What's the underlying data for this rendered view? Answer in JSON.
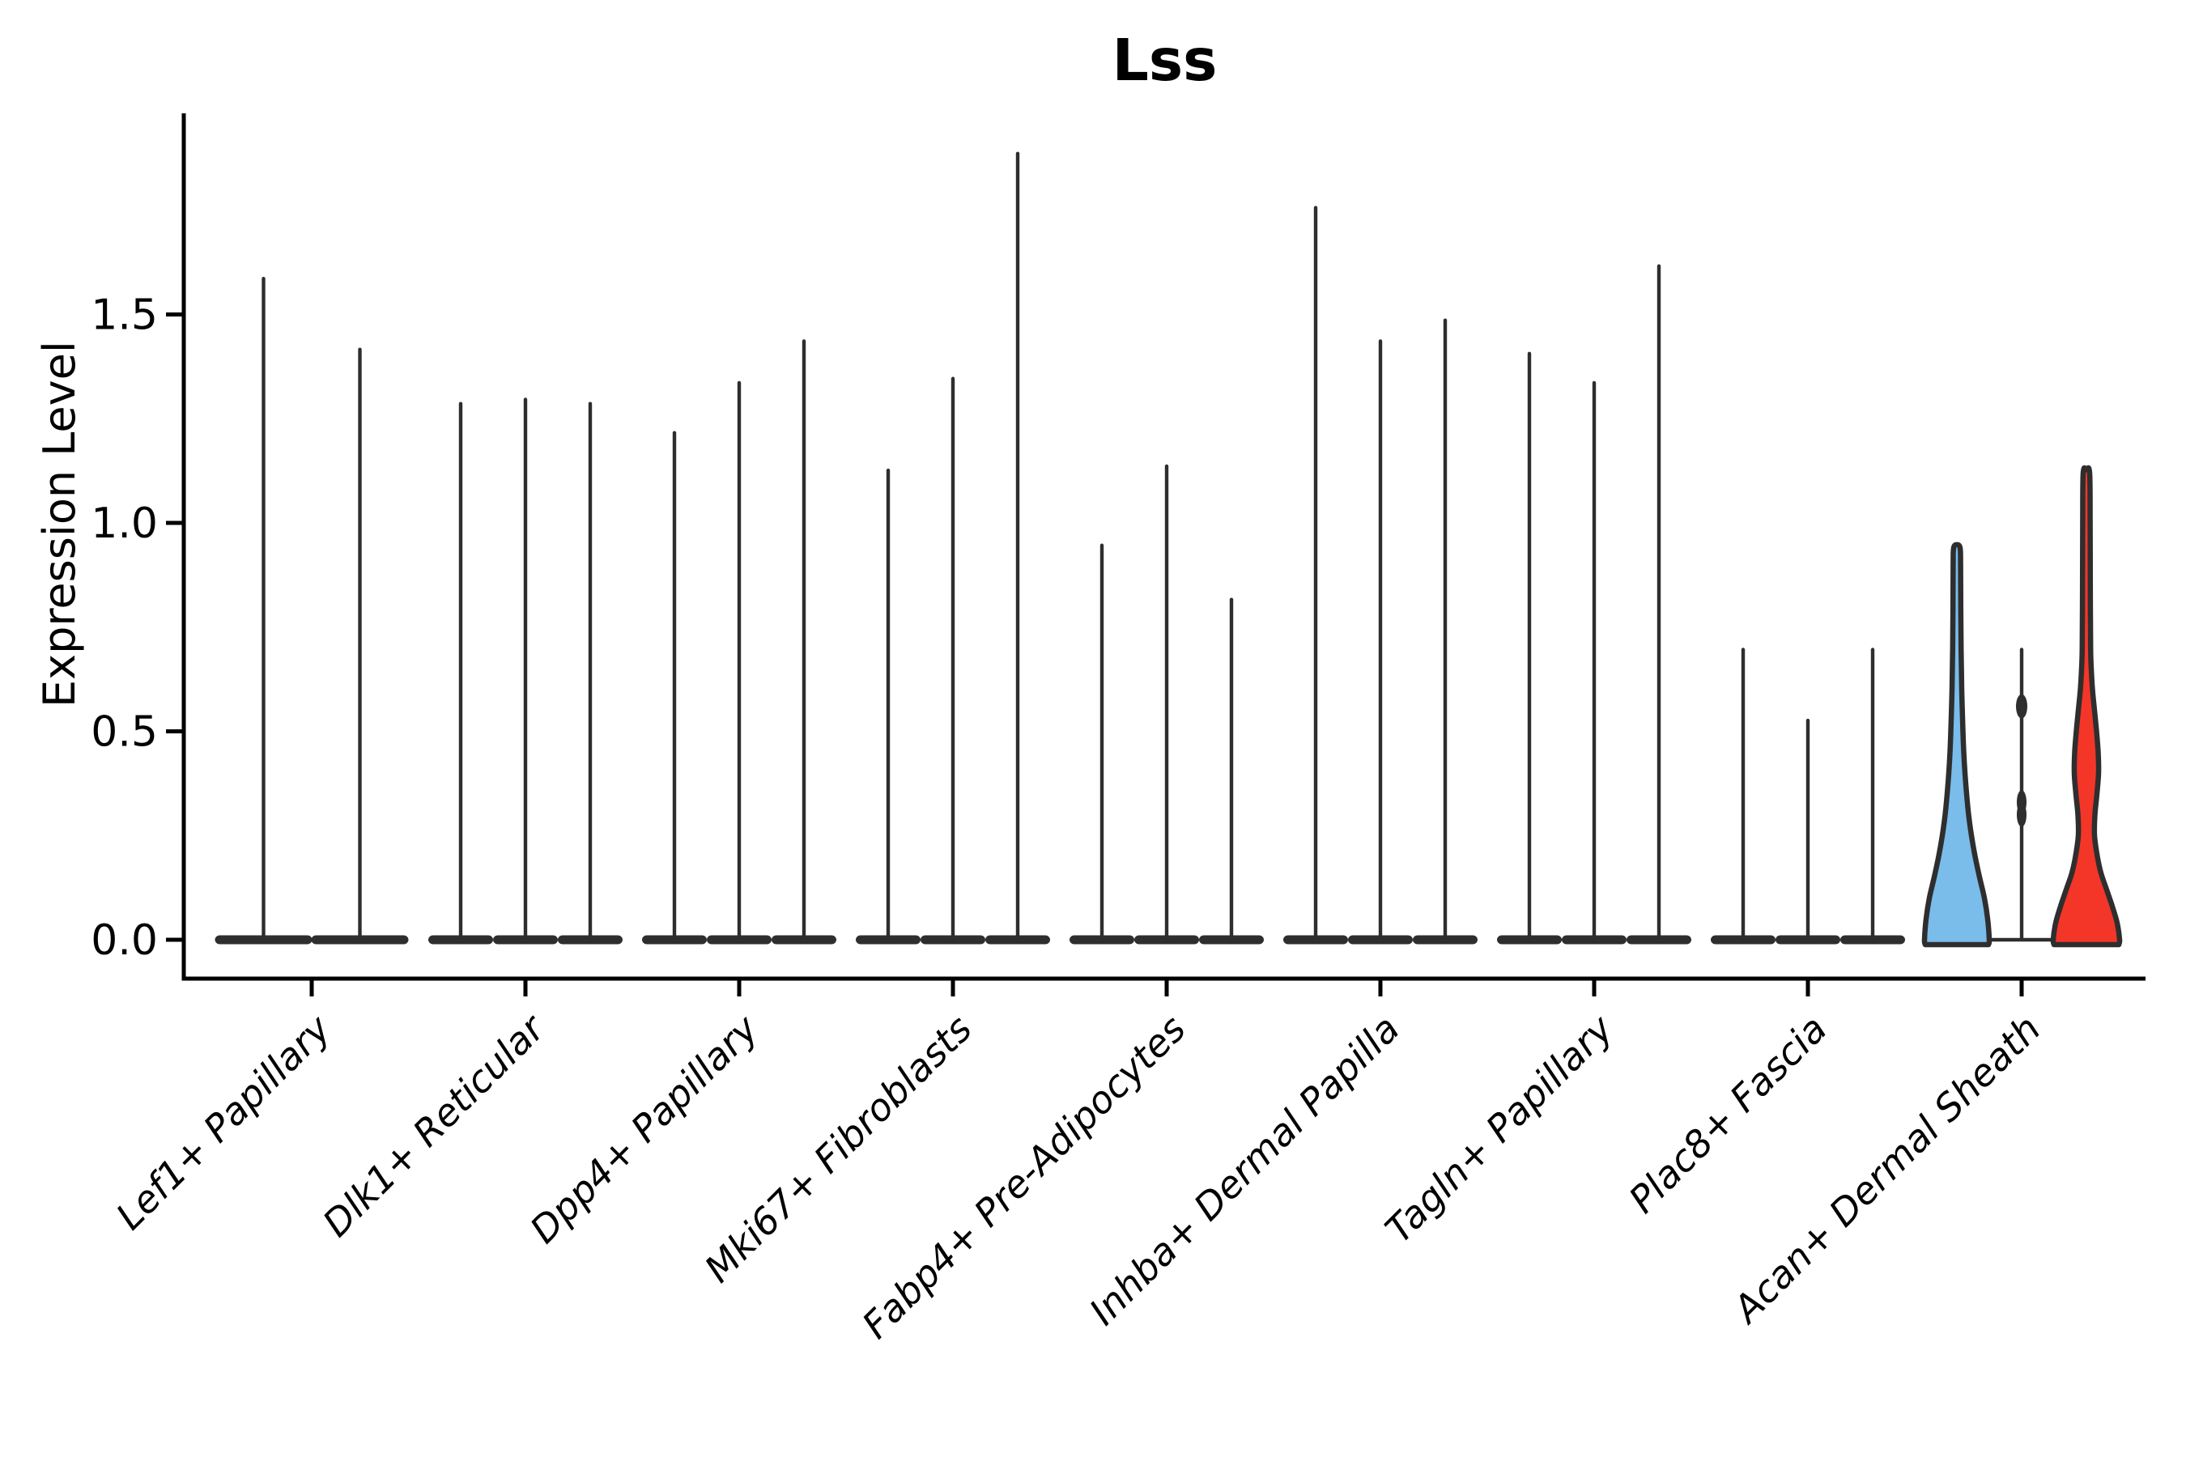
{
  "chart_data": {
    "type": "violin",
    "title": "Lss",
    "ylabel": "Expression Level",
    "xlabel": "",
    "ytick_labels": [
      "0.0",
      "0.5",
      "1.0",
      "1.5"
    ],
    "ytick_values": [
      0.0,
      0.5,
      1.0,
      1.5
    ],
    "ylim": [
      -0.09,
      1.98
    ],
    "grid": false,
    "legend": "none",
    "categories": [
      "Lef1+ Papillary",
      "Dlk1+ Reticular",
      "Dpp4+ Papillary",
      "Mki67+ Fibroblasts",
      "Fabp4+ Pre-Adipocytes",
      "Inhba+ Dermal Papilla",
      "Tagln+ Papillary",
      "Plac8+ Fascia",
      "Acan+ Dermal Sheath"
    ],
    "groups": [
      {
        "label": "Lef1+ Papillary",
        "violins": [
          {
            "peak": 1.59
          },
          {
            "peak": 1.42
          }
        ]
      },
      {
        "label": "Dlk1+ Reticular",
        "violins": [
          {
            "peak": 1.29
          },
          {
            "peak": 1.3
          },
          {
            "peak": 1.29
          }
        ]
      },
      {
        "label": "Dpp4+ Papillary",
        "violins": [
          {
            "peak": 1.22
          },
          {
            "peak": 1.34
          },
          {
            "peak": 1.44
          }
        ]
      },
      {
        "label": "Mki67+ Fibroblasts",
        "violins": [
          {
            "peak": 1.13
          },
          {
            "peak": 1.35
          },
          {
            "peak": 1.89
          }
        ]
      },
      {
        "label": "Fabp4+ Pre-Adipocytes",
        "violins": [
          {
            "peak": 0.95
          },
          {
            "peak": 1.14
          },
          {
            "peak": 0.82
          }
        ]
      },
      {
        "label": "Inhba+ Dermal Papilla",
        "violins": [
          {
            "peak": 1.76
          },
          {
            "peak": 1.44
          },
          {
            "peak": 1.49
          }
        ]
      },
      {
        "label": "Tagln+ Papillary",
        "violins": [
          {
            "peak": 1.41
          },
          {
            "peak": 1.34
          },
          {
            "peak": 1.62
          }
        ]
      },
      {
        "label": "Plac8+ Fascia",
        "violins": [
          {
            "peak": 0.7
          },
          {
            "peak": 0.53
          },
          {
            "peak": 0.7
          }
        ]
      },
      {
        "label": "Acan+ Dermal Sheath",
        "violins": [
          {
            "peak": 0.94,
            "color": "#7ABCEA",
            "profile": [
              [
                0,
                40
              ],
              [
                0.05,
                38
              ],
              [
                0.1,
                34
              ],
              [
                0.15,
                28
              ],
              [
                0.2,
                22.5
              ],
              [
                0.25,
                18
              ],
              [
                0.3,
                14.5
              ],
              [
                0.35,
                12
              ],
              [
                0.4,
                10
              ],
              [
                0.45,
                8.5
              ],
              [
                0.5,
                7.5
              ],
              [
                0.6,
                6
              ],
              [
                0.7,
                5.2
              ],
              [
                0.8,
                4.8
              ],
              [
                0.9,
                4.6
              ],
              [
                0.94,
                4
              ]
            ]
          },
          {
            "peak": 0.7,
            "bumps": [
              [
                0.56,
                7
              ],
              [
                0.33,
                6
              ],
              [
                0.3,
                6
              ]
            ]
          },
          {
            "peak": 1.12,
            "color": "#F43629",
            "profile": [
              [
                0,
                41
              ],
              [
                0.04,
                38
              ],
              [
                0.08,
                32
              ],
              [
                0.12,
                25
              ],
              [
                0.16,
                18
              ],
              [
                0.2,
                13.5
              ],
              [
                0.25,
                10
              ],
              [
                0.3,
                10.5
              ],
              [
                0.35,
                13
              ],
              [
                0.4,
                15
              ],
              [
                0.45,
                14.5
              ],
              [
                0.5,
                12.5
              ],
              [
                0.55,
                10
              ],
              [
                0.6,
                7.5
              ],
              [
                0.65,
                6
              ],
              [
                0.7,
                5.2
              ],
              [
                0.85,
                4.8
              ],
              [
                1.0,
                4.6
              ],
              [
                1.12,
                4
              ]
            ]
          }
        ]
      }
    ],
    "colors": {
      "highlight_blue": "#7ABCEA",
      "highlight_red": "#F43629",
      "violin_ink": "#2E2E2E",
      "axis_ink": "#000000"
    }
  }
}
